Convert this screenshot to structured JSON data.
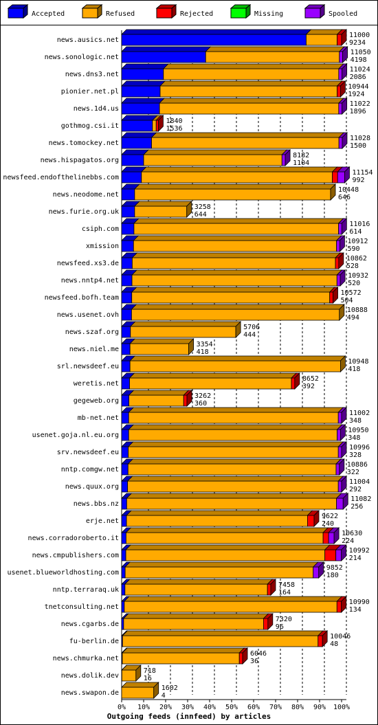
{
  "chart_data": {
    "type": "stacked-bar-3d",
    "orientation": "horizontal",
    "x_label": "Outgoing feeds (innfeed) by articles",
    "categories": [
      "news.ausics.net",
      "news.sonologic.net",
      "news.dns3.net",
      "pionier.net.pl",
      "news.1d4.us",
      "gothmog.csi.it",
      "news.tomockey.net",
      "news.hispagatos.org",
      "newsfeed.endofthelinebbs.com",
      "news.neodome.net",
      "news.furie.org.uk",
      "csiph.com",
      "xmission",
      "newsfeed.xs3.de",
      "news.nntp4.net",
      "newsfeed.bofh.team",
      "news.usenet.ovh",
      "news.szaf.org",
      "news.niel.me",
      "srl.newsdeef.eu",
      "weretis.net",
      "gegeweb.org",
      "mb-net.net",
      "usenet.goja.nl.eu.org",
      "srv.newsdeef.eu",
      "nntp.comgw.net",
      "news.quux.org",
      "news.bbs.nz",
      "erje.net",
      "news.corradoroberto.it",
      "news.cmpublishers.com",
      "usenet.blueworldhosting.com",
      "nntp.terraraq.uk",
      "tnetconsulting.net",
      "news.cgarbs.de",
      "fu-berlin.de",
      "news.chmurka.net",
      "news.dolik.dev",
      "news.swapon.de"
    ],
    "offered": [
      11000,
      11050,
      11024,
      10944,
      11022,
      1840,
      11028,
      8182,
      11154,
      10448,
      3258,
      11016,
      10912,
      10862,
      10932,
      10572,
      10888,
      5706,
      3354,
      10948,
      8652,
      3262,
      11002,
      10950,
      10996,
      10886,
      11004,
      11082,
      9622,
      10630,
      10992,
      9852,
      7458,
      10990,
      7320,
      10046,
      6046,
      718,
      1602
    ],
    "accepted": [
      9234,
      4198,
      2086,
      1924,
      1896,
      1536,
      1500,
      1104,
      992,
      646,
      644,
      614,
      590,
      528,
      520,
      504,
      494,
      444,
      418,
      418,
      392,
      360,
      348,
      348,
      328,
      322,
      292,
      256,
      240,
      224,
      214,
      180,
      164,
      134,
      96,
      48,
      36,
      16,
      4
    ],
    "series": [
      {
        "name": "Accepted",
        "color": "#0000ff",
        "values": [
          83.9,
          38.2,
          19.0,
          17.5,
          17.2,
          14.0,
          13.6,
          10.0,
          9.0,
          5.9,
          5.9,
          5.6,
          5.4,
          4.8,
          4.7,
          4.6,
          4.5,
          4.0,
          3.8,
          3.8,
          3.6,
          3.3,
          3.2,
          3.2,
          3.0,
          2.9,
          2.7,
          2.3,
          2.2,
          2.0,
          1.9,
          1.6,
          1.5,
          1.2,
          0.9,
          0.4,
          0.3,
          0.1,
          0.0
        ]
      },
      {
        "name": "Refused",
        "color": "#ffaa00",
        "values": [
          14.1,
          60.8,
          79.7,
          80.5,
          81.5,
          1.7,
          85.2,
          62.9,
          86.8,
          89.1,
          23.7,
          93.0,
          92.3,
          92.4,
          93.2,
          90.0,
          94.5,
          47.9,
          26.7,
          95.7,
          73.6,
          24.9,
          95.3,
          94.8,
          95.5,
          94.6,
          95.8,
          95.4,
          82.3,
          89.6,
          90.5,
          85.5,
          64.8,
          96.7,
          63.6,
          88.9,
          53.2,
          6.4,
          14.6
        ]
      },
      {
        "name": "Rejected",
        "color": "#ff0000",
        "values": [
          2.0,
          0,
          0,
          1.5,
          0,
          1.0,
          0,
          0,
          2.4,
          0,
          0,
          0,
          0,
          1.5,
          0,
          1.5,
          0,
          0,
          0,
          0,
          1.5,
          1.5,
          0,
          0,
          0,
          0,
          0,
          0,
          3.0,
          2.5,
          5.0,
          0,
          1.5,
          2.0,
          2.0,
          2.0,
          1.5,
          0,
          0
        ]
      },
      {
        "name": "Missing",
        "color": "#00ff00",
        "values": [
          0,
          0,
          0,
          0,
          0,
          0,
          0,
          0,
          0,
          0,
          0,
          0,
          0,
          0,
          0,
          0,
          0,
          0,
          0,
          0,
          0,
          0,
          0,
          0,
          0,
          0,
          0,
          0,
          0,
          0,
          0,
          0,
          0,
          0,
          0,
          0,
          0,
          0,
          0
        ]
      },
      {
        "name": "Spooled",
        "color": "#9900ff",
        "values": [
          0,
          1.5,
          1.5,
          0,
          1.5,
          0,
          1.5,
          1.5,
          3.2,
          0,
          0,
          1.5,
          1.5,
          0,
          1.5,
          0,
          0,
          0,
          0,
          0,
          0,
          0,
          1.5,
          1.5,
          1.5,
          1.5,
          1.5,
          3.0,
          0,
          2.5,
          2.5,
          2.5,
          0,
          0,
          0,
          0,
          0,
          0,
          0
        ]
      }
    ],
    "xlim": [
      0,
      100
    ],
    "xticks": [
      {
        "value": 0,
        "label": "0%"
      },
      {
        "value": 10,
        "label": "10%"
      },
      {
        "value": 20,
        "label": "20%"
      },
      {
        "value": 30,
        "label": "30%"
      },
      {
        "value": 40,
        "label": "40%"
      },
      {
        "value": 50,
        "label": "50%"
      },
      {
        "value": 60,
        "label": "60%"
      },
      {
        "value": 70,
        "label": "70%"
      },
      {
        "value": 80,
        "label": "80%"
      },
      {
        "value": 90,
        "label": "90%"
      },
      {
        "value": 100,
        "label": "100%"
      }
    ],
    "grid": true
  }
}
